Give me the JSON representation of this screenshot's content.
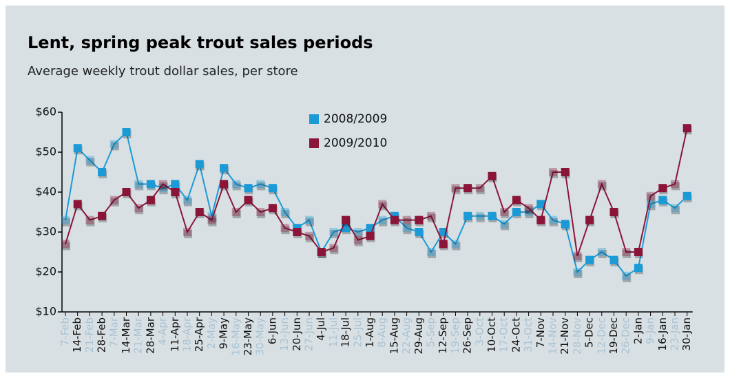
{
  "chart_data": {
    "type": "line",
    "title": "Lent, spring peak trout sales periods",
    "subtitle": "Average weekly trout dollar sales, per store",
    "categories": [
      "7-Feb",
      "14-Feb",
      "21-Feb",
      "28-Feb",
      "7-Mar",
      "14-Mar",
      "21-Mar",
      "28-Mar",
      "4-Apr",
      "11-Apr",
      "18-Apr",
      "25-Apr",
      "2-May",
      "9-May",
      "16-May",
      "23-May",
      "30-May",
      "6-Jun",
      "13-Jun",
      "20-Jun",
      "27-Jun",
      "4-Jul",
      "11-Jul",
      "18-Jul",
      "25-Jul",
      "1-Aug",
      "8-Aug",
      "15-Aug",
      "22-Aug",
      "29-Aug",
      "5-Sep",
      "12-Sep",
      "19-Sep",
      "26-Sep",
      "3-Oct",
      "10-Oct",
      "17-Oct",
      "24-Oct",
      "31-Oct",
      "7-Nov",
      "14-Nov",
      "21-Nov",
      "28-Nov",
      "5-Dec",
      "12-Dec",
      "19-Dec",
      "26-Dec",
      "2-Jan",
      "9-Jan",
      "16-Jan",
      "23-Jan",
      "30-Jan"
    ],
    "series": [
      {
        "name": "2008/2009",
        "color": "#1b9ad6",
        "values": [
          33,
          51,
          48,
          45,
          52,
          55,
          42,
          42,
          41,
          42,
          38,
          47,
          34,
          46,
          42,
          41,
          42,
          41,
          35,
          31,
          33,
          25,
          30,
          31,
          30,
          31,
          33,
          34,
          31,
          30,
          25,
          30,
          27,
          34,
          34,
          34,
          32,
          35,
          35,
          37,
          33,
          32,
          20,
          23,
          25,
          23,
          19,
          21,
          37,
          38,
          36,
          39
        ]
      },
      {
        "name": "2009/2010",
        "color": "#8a1538",
        "values": [
          27,
          37,
          33,
          34,
          38,
          40,
          36,
          38,
          42,
          40,
          30,
          35,
          33,
          42,
          35,
          38,
          35,
          36,
          31,
          30,
          29,
          25,
          26,
          33,
          28,
          29,
          37,
          33,
          33,
          33,
          34,
          27,
          41,
          41,
          41,
          44,
          35,
          38,
          36,
          33,
          45,
          45,
          24,
          33,
          42,
          35,
          25,
          25,
          39,
          41,
          42,
          56
        ]
      }
    ],
    "ylim": [
      10,
      60
    ],
    "yticks": [
      {
        "value": 10,
        "label": "$10"
      },
      {
        "value": 20,
        "label": "$20"
      },
      {
        "value": 30,
        "label": "$30"
      },
      {
        "value": 40,
        "label": "$40"
      },
      {
        "value": 50,
        "label": "$50"
      },
      {
        "value": 60,
        "label": "$60"
      }
    ],
    "legend": "top"
  }
}
